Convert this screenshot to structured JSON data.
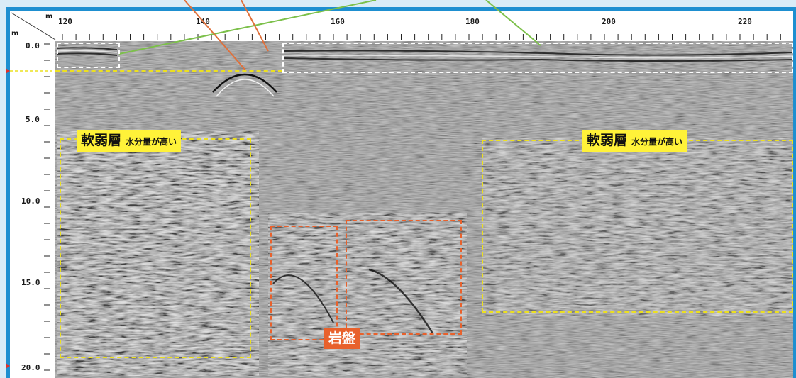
{
  "axes": {
    "x_unit": "m",
    "y_unit": "m",
    "x_tick_labels": [
      "120",
      "140",
      "160",
      "180",
      "200",
      "220"
    ],
    "y_tick_labels": [
      "0.0",
      "5.0",
      "10.0",
      "15.0",
      "20.0"
    ]
  },
  "annotations": {
    "soft_layer_left": {
      "main": "軟弱層",
      "sub": "水分量が高い"
    },
    "soft_layer_right": {
      "main": "軟弱層",
      "sub": "水分量が高い"
    },
    "bedrock": "岩盤"
  },
  "colors": {
    "frame": "#1e8fd0",
    "background": "#d9ecf7",
    "label_yellow": "#fff239",
    "dashed_yellow": "#ece020",
    "dashed_orange": "#e8612c",
    "dashed_white": "#ffffff",
    "line_green": "#7cc04a",
    "line_orange": "#e0703a",
    "marker_red": "#e0302a"
  }
}
